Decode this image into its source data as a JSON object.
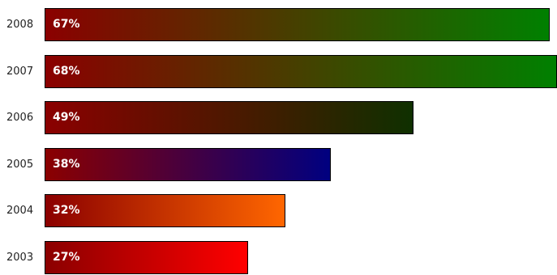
{
  "chart_data": {
    "type": "bar",
    "orientation": "horizontal",
    "title": "",
    "xlabel": "",
    "ylabel": "",
    "xlim": [
      0,
      68
    ],
    "categories": [
      "2008",
      "2007",
      "2006",
      "2005",
      "2004",
      "2003"
    ],
    "values": [
      67,
      68,
      49,
      38,
      32,
      27
    ],
    "labels": [
      "67%",
      "68%",
      "49%",
      "38%",
      "32%",
      "27%"
    ],
    "colors": [
      {
        "start": "#8b0000",
        "end": "#008000"
      },
      {
        "start": "#8b0000",
        "end": "#008000"
      },
      {
        "start": "#8b0000",
        "end": "#0f3000"
      },
      {
        "start": "#8b0000",
        "end": "#000080"
      },
      {
        "start": "#8b0000",
        "end": "#ff6600"
      },
      {
        "start": "#8b0000",
        "end": "#ff0000"
      }
    ],
    "grid": false,
    "legend": "none"
  }
}
